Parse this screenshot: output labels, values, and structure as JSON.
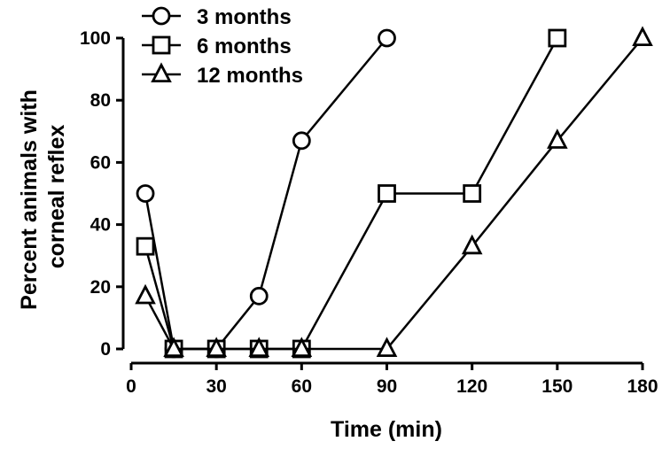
{
  "chart_data": {
    "type": "line",
    "xlabel": "Time (min)",
    "ylabel_lines": [
      "Percent animals with",
      "corneal reflex"
    ],
    "xlim": [
      0,
      180
    ],
    "ylim": [
      0,
      100
    ],
    "xticks": [
      0,
      30,
      60,
      90,
      120,
      150,
      180
    ],
    "yticks": [
      0,
      20,
      40,
      60,
      80,
      100
    ],
    "grid": false,
    "legend_position": "top-left",
    "series": [
      {
        "name": "3 months",
        "marker": "circle",
        "x": [
          5,
          15,
          30,
          45,
          60,
          90
        ],
        "y": [
          50,
          0,
          0,
          17,
          67,
          100
        ]
      },
      {
        "name": "6 months",
        "marker": "square",
        "x": [
          5,
          15,
          30,
          45,
          60,
          90,
          120,
          150
        ],
        "y": [
          33,
          0,
          0,
          0,
          0,
          50,
          50,
          100
        ]
      },
      {
        "name": "12 months",
        "marker": "triangle",
        "x": [
          5,
          15,
          30,
          45,
          60,
          90,
          120,
          150,
          180
        ],
        "y": [
          17,
          0,
          0,
          0,
          0,
          0,
          33,
          67,
          100
        ]
      }
    ]
  }
}
